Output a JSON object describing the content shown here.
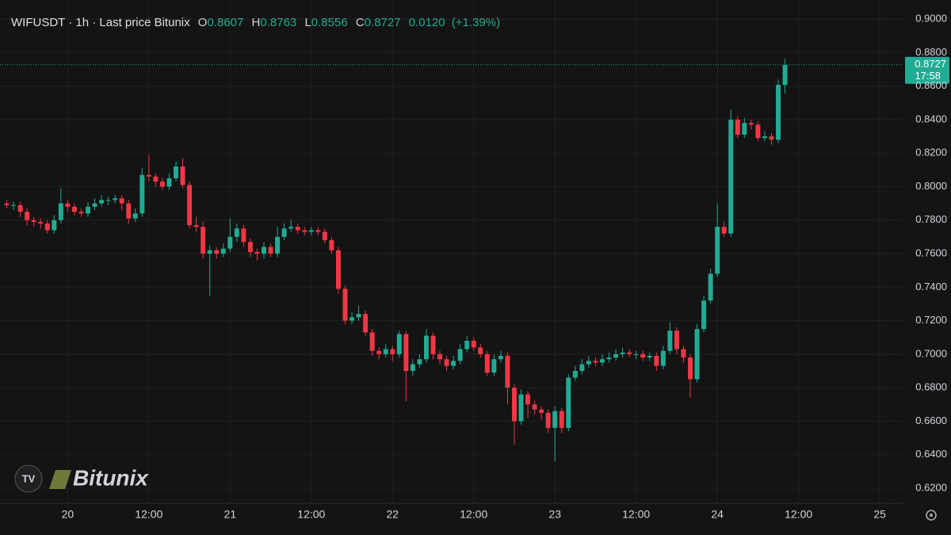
{
  "header": {
    "symbol": "WIFUSDT · 1h · Last price Bitunix",
    "o_label": "O",
    "h_label": "H",
    "l_label": "L",
    "c_label": "C",
    "change": "0.0120",
    "change_pct": "(+1.39%)",
    "countdown": "17:58",
    "brand": "Bitunix"
  },
  "chart_data": {
    "type": "candlestick",
    "up_color": "#22ab94",
    "down_color": "#f23645",
    "grid": true,
    "x": [
      0,
      1,
      2,
      3,
      4,
      5,
      6,
      7,
      8,
      9,
      10,
      11,
      12,
      13,
      14,
      15,
      16,
      17,
      18,
      19,
      20,
      21,
      22,
      23,
      24,
      25,
      26,
      27,
      28,
      29,
      30,
      31,
      32,
      33,
      34,
      35,
      36,
      37,
      38,
      39,
      40,
      41,
      42,
      43,
      44,
      45,
      46,
      47,
      48,
      49,
      50,
      51,
      52,
      53,
      54,
      55,
      56,
      57,
      58,
      59,
      60,
      61,
      62,
      63,
      64,
      65,
      66,
      67,
      68,
      69,
      70,
      71,
      72,
      73,
      74,
      75,
      76,
      77,
      78,
      79,
      80,
      81,
      82,
      83,
      84,
      85,
      86,
      87,
      88,
      89,
      90,
      91,
      92,
      93,
      94,
      95,
      96,
      97,
      98,
      99,
      100,
      101,
      102,
      103,
      104,
      105,
      106,
      107,
      108,
      109,
      110,
      111,
      112,
      113,
      114,
      115
    ],
    "open": [
      0.79,
      0.789,
      0.789,
      0.785,
      0.78,
      0.779,
      0.778,
      0.774,
      0.78,
      0.79,
      0.788,
      0.785,
      0.784,
      0.788,
      0.79,
      0.792,
      0.792,
      0.793,
      0.79,
      0.781,
      0.784,
      0.807,
      0.806,
      0.803,
      0.8,
      0.805,
      0.812,
      0.801,
      0.777,
      0.776,
      0.76,
      0.762,
      0.76,
      0.763,
      0.77,
      0.775,
      0.767,
      0.761,
      0.76,
      0.764,
      0.76,
      0.77,
      0.775,
      0.776,
      0.774,
      0.773,
      0.774,
      0.773,
      0.768,
      0.762,
      0.739,
      0.72,
      0.722,
      0.724,
      0.713,
      0.702,
      0.7,
      0.703,
      0.7,
      0.712,
      0.69,
      0.694,
      0.697,
      0.711,
      0.7,
      0.697,
      0.693,
      0.696,
      0.703,
      0.708,
      0.704,
      0.7,
      0.689,
      0.697,
      0.699,
      0.68,
      0.66,
      0.676,
      0.67,
      0.667,
      0.665,
      0.656,
      0.666,
      0.656,
      0.686,
      0.69,
      0.694,
      0.696,
      0.695,
      0.697,
      0.698,
      0.7,
      0.701,
      0.7,
      0.7,
      0.698,
      0.699,
      0.693,
      0.702,
      0.714,
      0.703,
      0.698,
      0.685,
      0.715,
      0.732,
      0.748,
      0.776,
      0.772,
      0.84,
      0.831,
      0.838,
      0.837,
      0.829,
      0.83,
      0.828,
      0.8607
    ],
    "high": [
      0.792,
      0.791,
      0.791,
      0.787,
      0.782,
      0.781,
      0.78,
      0.783,
      0.799,
      0.792,
      0.79,
      0.787,
      0.791,
      0.793,
      0.795,
      0.794,
      0.795,
      0.795,
      0.792,
      0.787,
      0.811,
      0.819,
      0.808,
      0.805,
      0.808,
      0.815,
      0.817,
      0.803,
      0.782,
      0.779,
      0.765,
      0.764,
      0.766,
      0.781,
      0.778,
      0.777,
      0.769,
      0.763,
      0.767,
      0.766,
      0.776,
      0.778,
      0.78,
      0.778,
      0.776,
      0.776,
      0.776,
      0.775,
      0.77,
      0.764,
      0.741,
      0.725,
      0.729,
      0.726,
      0.715,
      0.704,
      0.706,
      0.705,
      0.714,
      0.714,
      0.697,
      0.7,
      0.715,
      0.713,
      0.702,
      0.699,
      0.699,
      0.706,
      0.711,
      0.71,
      0.706,
      0.702,
      0.7,
      0.702,
      0.701,
      0.682,
      0.679,
      0.678,
      0.672,
      0.669,
      0.667,
      0.669,
      0.668,
      0.688,
      0.693,
      0.697,
      0.699,
      0.698,
      0.7,
      0.701,
      0.703,
      0.704,
      0.703,
      0.702,
      0.702,
      0.701,
      0.701,
      0.705,
      0.719,
      0.716,
      0.705,
      0.7,
      0.718,
      0.735,
      0.751,
      0.79,
      0.779,
      0.846,
      0.842,
      0.841,
      0.84,
      0.839,
      0.833,
      0.832,
      0.864,
      0.8763
    ],
    "low": [
      0.787,
      0.786,
      0.782,
      0.777,
      0.776,
      0.775,
      0.772,
      0.772,
      0.778,
      0.785,
      0.783,
      0.782,
      0.782,
      0.786,
      0.788,
      0.789,
      0.79,
      0.786,
      0.778,
      0.779,
      0.782,
      0.803,
      0.8,
      0.798,
      0.798,
      0.803,
      0.799,
      0.775,
      0.773,
      0.757,
      0.735,
      0.757,
      0.758,
      0.761,
      0.767,
      0.764,
      0.758,
      0.756,
      0.757,
      0.758,
      0.758,
      0.768,
      0.773,
      0.772,
      0.771,
      0.771,
      0.771,
      0.766,
      0.76,
      0.736,
      0.718,
      0.718,
      0.72,
      0.711,
      0.699,
      0.697,
      0.698,
      0.696,
      0.698,
      0.672,
      0.687,
      0.692,
      0.695,
      0.697,
      0.694,
      0.69,
      0.691,
      0.694,
      0.701,
      0.702,
      0.698,
      0.687,
      0.687,
      0.695,
      0.67,
      0.646,
      0.658,
      0.662,
      0.664,
      0.661,
      0.653,
      0.636,
      0.653,
      0.654,
      0.684,
      0.688,
      0.692,
      0.693,
      0.693,
      0.695,
      0.696,
      0.698,
      0.698,
      0.697,
      0.696,
      0.696,
      0.69,
      0.691,
      0.7,
      0.7,
      0.695,
      0.674,
      0.683,
      0.713,
      0.73,
      0.746,
      0.77,
      0.77,
      0.829,
      0.829,
      0.834,
      0.827,
      0.827,
      0.825,
      0.826,
      0.8556
    ],
    "close": [
      0.789,
      0.789,
      0.785,
      0.78,
      0.779,
      0.778,
      0.774,
      0.78,
      0.79,
      0.788,
      0.785,
      0.784,
      0.788,
      0.79,
      0.792,
      0.792,
      0.793,
      0.79,
      0.781,
      0.784,
      0.807,
      0.806,
      0.803,
      0.8,
      0.805,
      0.812,
      0.801,
      0.777,
      0.776,
      0.76,
      0.762,
      0.76,
      0.763,
      0.77,
      0.775,
      0.767,
      0.761,
      0.76,
      0.764,
      0.76,
      0.77,
      0.775,
      0.776,
      0.774,
      0.773,
      0.774,
      0.773,
      0.768,
      0.762,
      0.739,
      0.72,
      0.722,
      0.724,
      0.713,
      0.702,
      0.7,
      0.703,
      0.7,
      0.712,
      0.69,
      0.694,
      0.697,
      0.711,
      0.7,
      0.697,
      0.693,
      0.696,
      0.703,
      0.708,
      0.704,
      0.7,
      0.689,
      0.697,
      0.699,
      0.68,
      0.66,
      0.676,
      0.67,
      0.667,
      0.665,
      0.656,
      0.666,
      0.656,
      0.686,
      0.69,
      0.694,
      0.696,
      0.695,
      0.697,
      0.698,
      0.7,
      0.701,
      0.7,
      0.7,
      0.698,
      0.699,
      0.693,
      0.702,
      0.714,
      0.703,
      0.698,
      0.685,
      0.715,
      0.732,
      0.748,
      0.776,
      0.772,
      0.84,
      0.831,
      0.838,
      0.837,
      0.829,
      0.83,
      0.828,
      0.8607,
      0.8727
    ],
    "xlim": [
      -1,
      132.5
    ],
    "xticks": [
      {
        "value": 9,
        "label": "20"
      },
      {
        "value": 21,
        "label": "12:00"
      },
      {
        "value": 33,
        "label": "21"
      },
      {
        "value": 45,
        "label": "12:00"
      },
      {
        "value": 57,
        "label": "22"
      },
      {
        "value": 69,
        "label": "12:00"
      },
      {
        "value": 81,
        "label": "23"
      },
      {
        "value": 93,
        "label": "12:00"
      },
      {
        "value": 105,
        "label": "24"
      },
      {
        "value": 117,
        "label": "12:00"
      },
      {
        "value": 129,
        "label": "25"
      }
    ],
    "ylim": [
      0.611,
      0.9114
    ],
    "yticks": [
      {
        "value": 0.62,
        "label": "0.6200"
      },
      {
        "value": 0.64,
        "label": "0.6400"
      },
      {
        "value": 0.66,
        "label": "0.6600"
      },
      {
        "value": 0.68,
        "label": "0.6800"
      },
      {
        "value": 0.7,
        "label": "0.7000"
      },
      {
        "value": 0.72,
        "label": "0.7200"
      },
      {
        "value": 0.74,
        "label": "0.7400"
      },
      {
        "value": 0.76,
        "label": "0.7600"
      },
      {
        "value": 0.78,
        "label": "0.7800"
      },
      {
        "value": 0.8,
        "label": "0.8000"
      },
      {
        "value": 0.82,
        "label": "0.8200"
      },
      {
        "value": 0.84,
        "label": "0.8400"
      },
      {
        "value": 0.86,
        "label": "0.8600"
      },
      {
        "value": 0.88,
        "label": "0.8800"
      },
      {
        "value": 0.9,
        "label": "0.9000"
      }
    ]
  }
}
